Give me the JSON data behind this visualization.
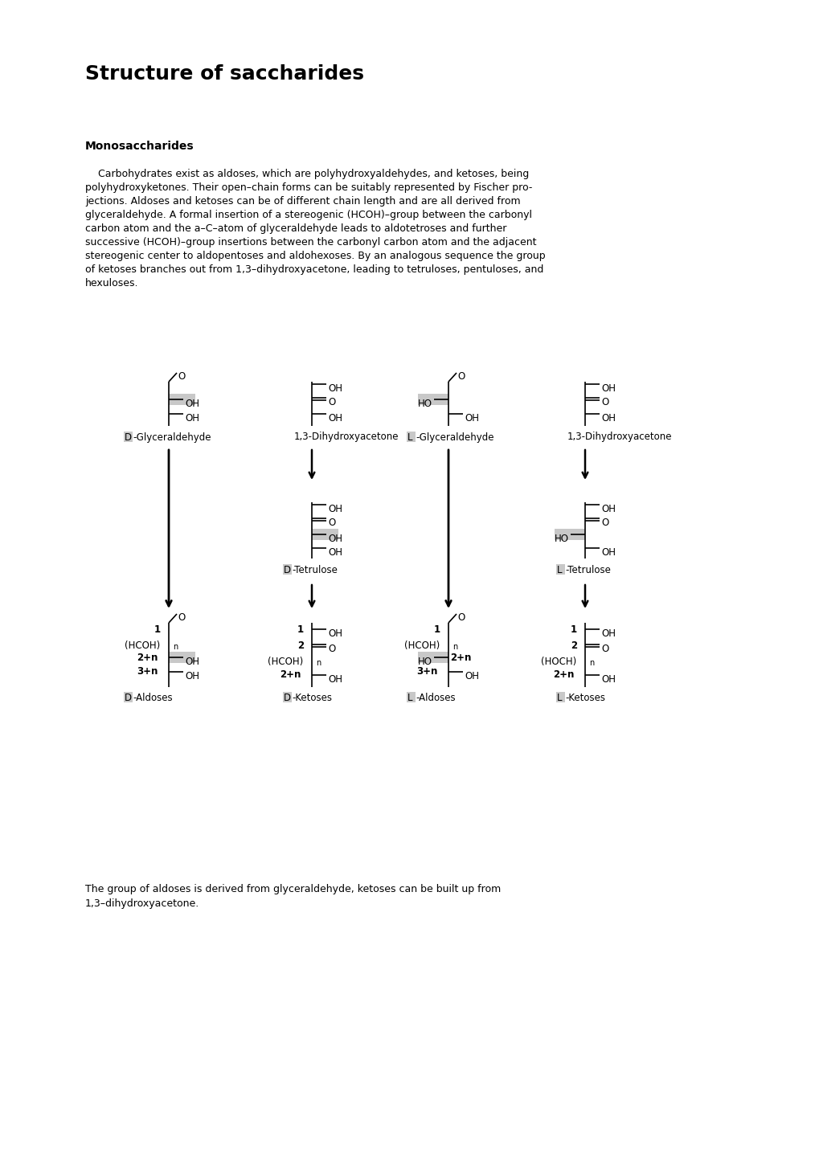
{
  "title": "Structure of saccharides",
  "section_title": "Monosaccharides",
  "para_lines": [
    "    Carbohydrates exist as aldoses, which are polyhydroxyaldehydes, and ketoses, being",
    "polyhydroxyketones. Their open–chain forms can be suitably represented by Fischer pro-",
    "jections. Aldoses and ketoses can be of different chain length and are all derived from",
    "glyceraldehyde. A formal insertion of a stereogenic (HCOH)–group between the carbonyl",
    "carbon atom and the a–C–atom of glyceraldehyde leads to aldotetroses and further",
    "successive (HCOH)–group insertions between the carbonyl carbon atom and the adjacent",
    "stereogenic center to aldopentoses and aldohexoses. By an analogous sequence the group",
    "of ketoses branches out from 1,3–dihydroxyacetone, leading to tetruloses, pentuloses, and",
    "hexuloses."
  ],
  "caption_lines": [
    "The group of aldoses is derived from glyceraldehyde, ketoses can be built up from",
    "1,3–dihydroxyacetone."
  ],
  "bg_color": "#ffffff",
  "text_color": "#000000",
  "highlight_color": "#c8c8c8",
  "title_fontsize": 18,
  "section_fontsize": 10,
  "para_fontsize": 9,
  "caption_fontsize": 9
}
